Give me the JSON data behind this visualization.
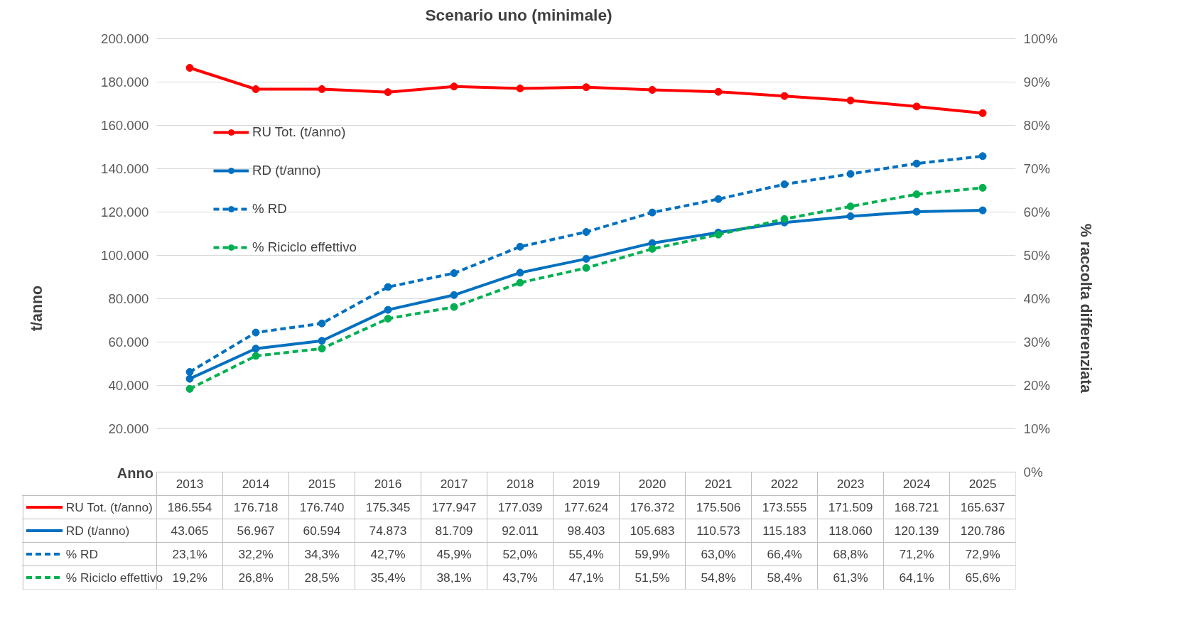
{
  "chart_data": {
    "type": "line",
    "title": "Scenario uno (minimale)",
    "xlabel": "Anno",
    "ylabel": "t/anno",
    "y2label": "% raccolta differenziata",
    "categories": [
      "2013",
      "2014",
      "2015",
      "2016",
      "2017",
      "2018",
      "2019",
      "2020",
      "2021",
      "2022",
      "2023",
      "2024",
      "2025"
    ],
    "ylim": [
      0,
      200000
    ],
    "yticks": [
      {
        "value": 0,
        "label": null
      },
      {
        "value": 20000,
        "label": "20.000"
      },
      {
        "value": 40000,
        "label": "40.000"
      },
      {
        "value": 60000,
        "label": "60.000"
      },
      {
        "value": 80000,
        "label": "80.000"
      },
      {
        "value": 100000,
        "label": "100.000"
      },
      {
        "value": 120000,
        "label": "120.000"
      },
      {
        "value": 140000,
        "label": "140.000"
      },
      {
        "value": 160000,
        "label": "160.000"
      },
      {
        "value": 180000,
        "label": "180.000"
      },
      {
        "value": 200000,
        "label": "200.000"
      }
    ],
    "y2lim": [
      0,
      100
    ],
    "y2ticks": [
      {
        "value": 0,
        "label": "0%"
      },
      {
        "value": 10,
        "label": "10%"
      },
      {
        "value": 20,
        "label": "20%"
      },
      {
        "value": 30,
        "label": "30%"
      },
      {
        "value": 40,
        "label": "40%"
      },
      {
        "value": 50,
        "label": "50%"
      },
      {
        "value": 60,
        "label": "60%"
      },
      {
        "value": 70,
        "label": "70%"
      },
      {
        "value": 80,
        "label": "80%"
      },
      {
        "value": 90,
        "label": "90%"
      },
      {
        "value": 100,
        "label": "100%"
      }
    ],
    "grid": "y",
    "legend": "left",
    "marker": "circle",
    "series": [
      {
        "name": "RU Tot. (t/anno)",
        "color": "#ff0000",
        "line_style": "solid",
        "values": [
          186554,
          176718,
          176740,
          175345,
          177947,
          177039,
          177624,
          176372,
          175506,
          173555,
          171509,
          168721,
          165637
        ],
        "value_labels": [
          "186.554",
          "176.718",
          "176.740",
          "175.345",
          "177.947",
          "177.039",
          "177.624",
          "176.372",
          "175.506",
          "173.555",
          "171.509",
          "168.721",
          "165.637"
        ]
      },
      {
        "name": "RD (t/anno)",
        "color": "#0070c0",
        "line_style": "solid",
        "values": [
          43065,
          56967,
          60594,
          74873,
          81709,
          92011,
          98403,
          105683,
          110573,
          115183,
          118060,
          120139,
          120786
        ],
        "value_labels": [
          "43.065",
          "56.967",
          "60.594",
          "74.873",
          "81.709",
          "92.011",
          "98.403",
          "105.683",
          "110.573",
          "115.183",
          "118.060",
          "120.139",
          "120.786"
        ]
      },
      {
        "name": "% RD",
        "color": "#0070c0",
        "line_style": "dashed",
        "axis": "y2",
        "values": [
          23.1,
          32.2,
          34.3,
          42.7,
          45.9,
          52.0,
          55.4,
          59.9,
          63.0,
          66.4,
          68.8,
          71.2,
          72.9
        ],
        "value_labels": [
          "23,1%",
          "32,2%",
          "34,3%",
          "42,7%",
          "45,9%",
          "52,0%",
          "55,4%",
          "59,9%",
          "63,0%",
          "66,4%",
          "68,8%",
          "71,2%",
          "72,9%"
        ]
      },
      {
        "name": "% Riciclo effettivo",
        "color": "#00b050",
        "line_style": "dashed",
        "axis": "y2",
        "values": [
          19.2,
          26.8,
          28.5,
          35.4,
          38.1,
          43.7,
          47.1,
          51.5,
          54.8,
          58.4,
          61.3,
          64.1,
          65.6
        ],
        "value_labels": [
          "19,2%",
          "26,8%",
          "28,5%",
          "35,4%",
          "38,1%",
          "43,7%",
          "47,1%",
          "51,5%",
          "54,8%",
          "58,4%",
          "61,3%",
          "64,1%",
          "65,6%"
        ]
      }
    ]
  }
}
